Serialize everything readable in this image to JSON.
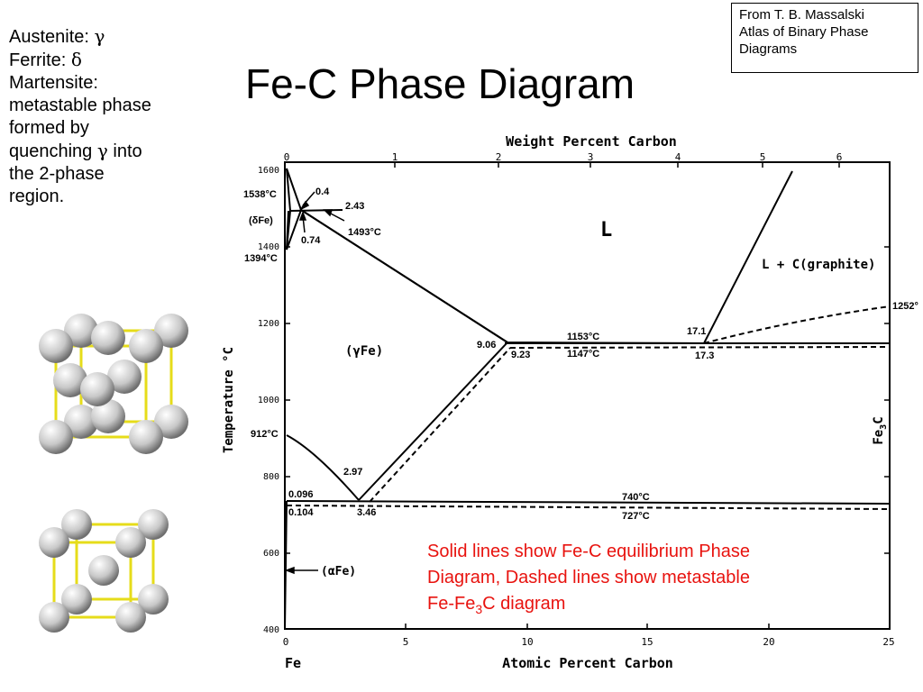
{
  "slide": {
    "title": "Fe-C Phase Diagram",
    "source_note": [
      "From T. B. Massalski",
      "Atlas of Binary Phase",
      "Diagrams"
    ],
    "notes": [
      {
        "name": "Austenite:",
        "sym": "γ"
      },
      {
        "name": "Ferrite:",
        "sym": "δ"
      }
    ],
    "martensite_lines": [
      "Martensite:",
      "metastable phase",
      "formed by"
    ],
    "quench_prefix": "quenching ",
    "quench_sym": "γ",
    "quench_suffix": " into",
    "martensite_tail": [
      "the 2-phase",
      "region."
    ],
    "caption": {
      "line1": "Solid lines show Fe-C equilibrium Phase",
      "line2": "Diagram, Dashed lines show metastable",
      "line3_pre": "Fe-Fe",
      "line3_sub": "3",
      "line3_post": "C diagram"
    }
  },
  "diagram": {
    "top_axis_title": "Weight Percent Carbon",
    "top_ticks": [
      "0",
      "1",
      "2",
      "3",
      "4",
      "5",
      "6"
    ],
    "bottom_axis_title": "Atomic Percent Carbon",
    "bottom_ticks": [
      "0",
      "5",
      "10",
      "15",
      "20",
      "25"
    ],
    "bottom_left_label": "Fe",
    "y_axis_title": "Temperature °C",
    "y_ticks": [
      "1600",
      "1400",
      "1200",
      "1000",
      "800",
      "600",
      "400"
    ],
    "right_label_main": "Fe",
    "right_label_sub": "3",
    "right_label_tail": "C",
    "labels": {
      "t1538": "1538°C",
      "v04": "0.4",
      "v243": "2.43",
      "dFe": "(δFe)",
      "v074": "0.74",
      "t1493": "1493°C",
      "t1394": "1394°C",
      "L": "L",
      "Lgraphite": "L + C(graphite)",
      "t1252": "1252°",
      "v171": "17.1",
      "v173": "17.3",
      "gFe": "(γFe)",
      "v906": "9.06",
      "v923": "9.23",
      "t1153": "1153°C",
      "t1147": "1147°C",
      "t912": "912°C",
      "v297": "2.97",
      "v346": "3.46",
      "v0096": "0.096",
      "v0104": "0.104",
      "t740": "740°C",
      "t727": "727°C",
      "aFe": "(αFe)"
    }
  },
  "colors": {
    "caption": "#e8130f",
    "lattice_bond": "#e6dc1a",
    "atom": "#c8c8c8"
  }
}
